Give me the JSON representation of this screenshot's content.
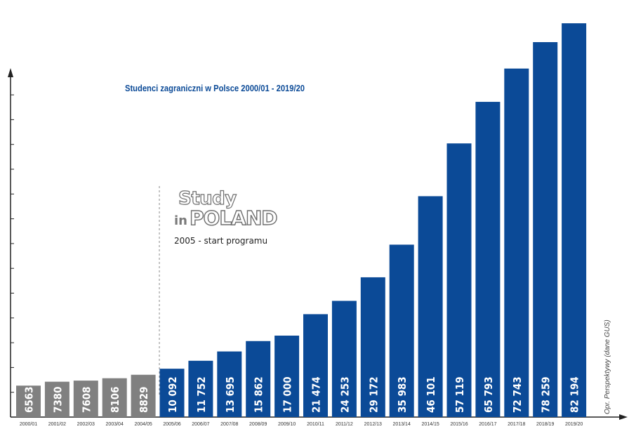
{
  "chart_data": {
    "type": "bar",
    "title": "Studenci zagraniczni w Polsce 2000/01 - 2019/20",
    "categories": [
      "2000/01",
      "2001/02",
      "2002/03",
      "2003/04",
      "2004/05",
      "2005/06",
      "2006/07",
      "2007/08",
      "2008/09",
      "2009/10",
      "2010/11",
      "2011/12",
      "2012/13",
      "2013/14",
      "2014/15",
      "2015/16",
      "2016/17",
      "2017/18",
      "2018/19",
      "2019/20"
    ],
    "values": [
      6563,
      7380,
      7608,
      8106,
      8829,
      10092,
      11752,
      13695,
      15862,
      17000,
      21474,
      24253,
      29172,
      35983,
      46101,
      57119,
      65793,
      72743,
      78259,
      82194
    ],
    "value_labels": [
      "6563",
      "7380",
      "7608",
      "8106",
      "8829",
      "10 092",
      "11 752",
      "13 695",
      "15 862",
      "17 000",
      "21 474",
      "24 253",
      "29 172",
      "35 983",
      "46 101",
      "57 119",
      "65 793",
      "72 743",
      "78 259",
      "82 194"
    ],
    "ylim": [
      0,
      85000
    ],
    "colors": {
      "before_program": "#808080",
      "program": "#0b4a97"
    },
    "program_start_index": 5,
    "grid": false,
    "annotation": "2005 - start programu",
    "logo": {
      "line1": "Study",
      "line2_prefix": "in",
      "line2": "POLAND"
    },
    "source": "Opr. Perspektywy (dane GUS)"
  }
}
